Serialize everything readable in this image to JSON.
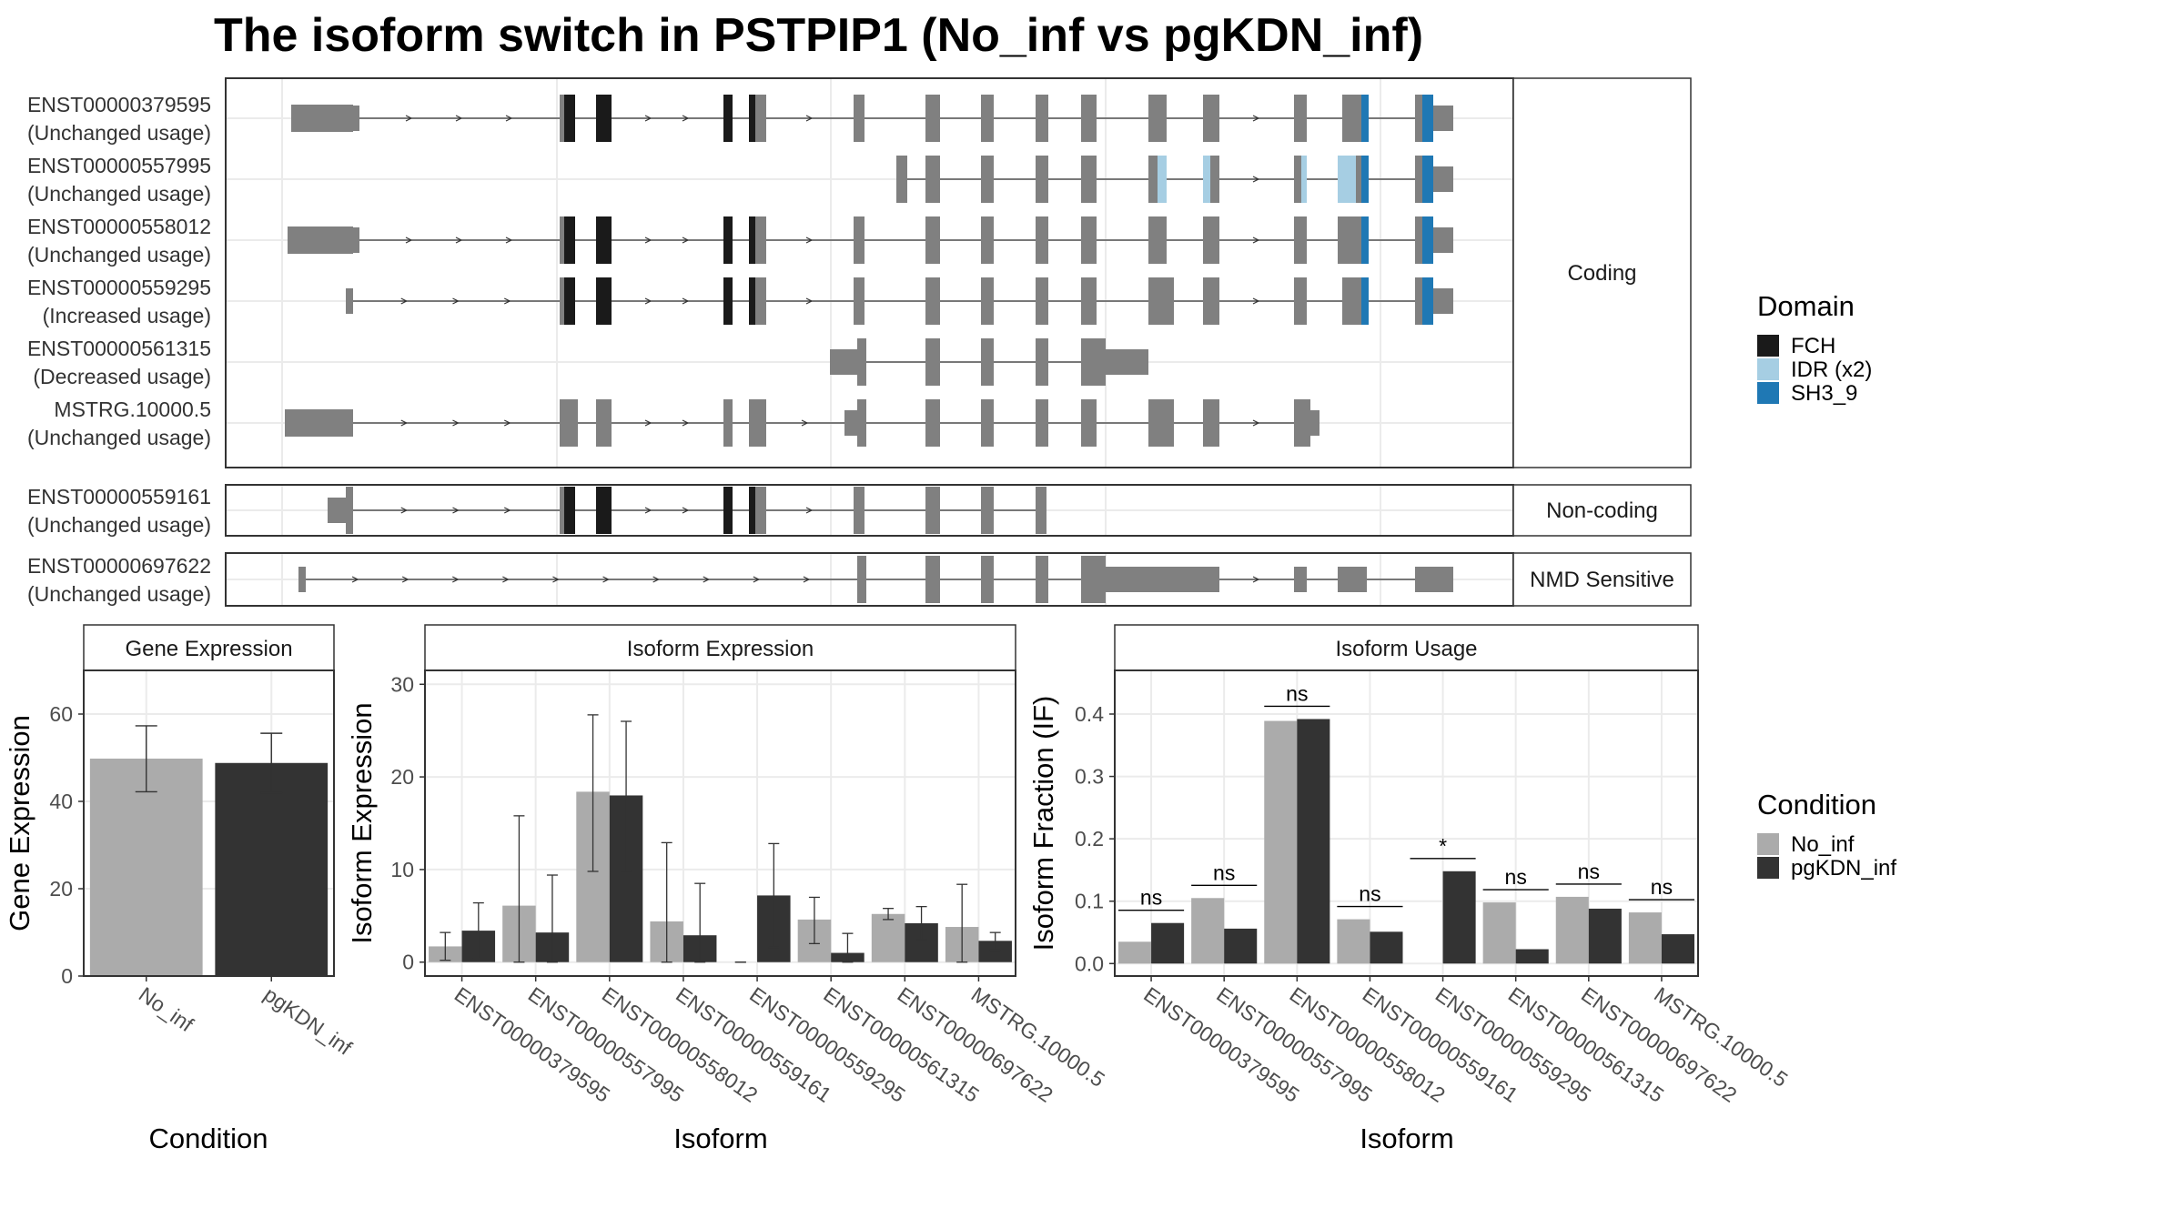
{
  "title": "The isoform switch in PSTPIP1 (No_inf vs pgKDN_inf)",
  "colors": {
    "exon": "#808080",
    "no_inf": "#ababab",
    "pgkdn_inf": "#333333",
    "FCH": "#1a1a1a",
    "IDR": "#a6cee3",
    "SH3_9": "#1f78b4",
    "grid": "#ebebeb",
    "frame": "#4d4d4d"
  },
  "transcript_groups": [
    {
      "label": "Coding",
      "transcripts": [
        {
          "id": "ENST00000379595",
          "usage": "(Unchanged usage)",
          "span": [
            320,
            1597
          ],
          "exons": [
            [
              320,
              388,
              "thick"
            ],
            [
              388,
              395,
              "utr"
            ],
            [
              615,
              620,
              "exon"
            ],
            [
              620,
              632,
              "FCH"
            ],
            [
              655,
              672,
              "FCH"
            ],
            [
              795,
              805,
              "FCH"
            ],
            [
              823,
              830,
              "FCH"
            ],
            [
              830,
              842,
              "exon"
            ],
            [
              938,
              950,
              "exon"
            ],
            [
              1017,
              1033,
              "exon"
            ],
            [
              1078,
              1092,
              "exon"
            ],
            [
              1138,
              1152,
              "exon"
            ],
            [
              1188,
              1205,
              "exon"
            ],
            [
              1262,
              1282,
              "exon"
            ],
            [
              1322,
              1340,
              "exon"
            ],
            [
              1422,
              1436,
              "exon"
            ],
            [
              1475,
              1496,
              "exon"
            ],
            [
              1496,
              1504,
              "SH3_9"
            ],
            [
              1555,
              1563,
              "exon"
            ],
            [
              1563,
              1575,
              "SH3_9"
            ],
            [
              1575,
              1597,
              "utr"
            ]
          ]
        },
        {
          "id": "ENST00000557995",
          "usage": "(Unchanged usage)",
          "span": [
            985,
            1597
          ],
          "exons": [
            [
              985,
              997,
              "exon"
            ],
            [
              1017,
              1033,
              "exon"
            ],
            [
              1078,
              1092,
              "exon"
            ],
            [
              1138,
              1152,
              "exon"
            ],
            [
              1188,
              1205,
              "exon"
            ],
            [
              1262,
              1272,
              "exon"
            ],
            [
              1272,
              1282,
              "IDR"
            ],
            [
              1322,
              1330,
              "IDR"
            ],
            [
              1330,
              1340,
              "exon"
            ],
            [
              1422,
              1430,
              "exon"
            ],
            [
              1430,
              1436,
              "IDR"
            ],
            [
              1470,
              1490,
              "IDR"
            ],
            [
              1490,
              1496,
              "exon"
            ],
            [
              1496,
              1504,
              "SH3_9"
            ],
            [
              1555,
              1563,
              "exon"
            ],
            [
              1563,
              1575,
              "SH3_9"
            ],
            [
              1575,
              1597,
              "utr"
            ]
          ]
        },
        {
          "id": "ENST00000558012",
          "usage": "(Unchanged usage)",
          "span": [
            316,
            1597
          ],
          "exons": [
            [
              316,
              388,
              "thick"
            ],
            [
              388,
              395,
              "utr"
            ],
            [
              615,
              620,
              "exon"
            ],
            [
              620,
              632,
              "FCH"
            ],
            [
              655,
              672,
              "FCH"
            ],
            [
              795,
              805,
              "FCH"
            ],
            [
              823,
              830,
              "FCH"
            ],
            [
              830,
              842,
              "exon"
            ],
            [
              938,
              950,
              "exon"
            ],
            [
              1017,
              1033,
              "exon"
            ],
            [
              1078,
              1092,
              "exon"
            ],
            [
              1138,
              1152,
              "exon"
            ],
            [
              1188,
              1205,
              "exon"
            ],
            [
              1262,
              1282,
              "exon"
            ],
            [
              1322,
              1340,
              "exon"
            ],
            [
              1422,
              1436,
              "exon"
            ],
            [
              1470,
              1496,
              "exon"
            ],
            [
              1496,
              1504,
              "SH3_9"
            ],
            [
              1555,
              1563,
              "exon"
            ],
            [
              1563,
              1575,
              "SH3_9"
            ],
            [
              1575,
              1597,
              "utr"
            ]
          ]
        },
        {
          "id": "ENST00000559295",
          "usage": "(Increased usage)",
          "span": [
            380,
            1597
          ],
          "exons": [
            [
              380,
              388,
              "utr"
            ],
            [
              615,
              620,
              "exon"
            ],
            [
              620,
              632,
              "FCH"
            ],
            [
              655,
              672,
              "FCH"
            ],
            [
              795,
              805,
              "FCH"
            ],
            [
              823,
              830,
              "FCH"
            ],
            [
              830,
              842,
              "exon"
            ],
            [
              938,
              950,
              "exon"
            ],
            [
              1017,
              1033,
              "exon"
            ],
            [
              1078,
              1092,
              "exon"
            ],
            [
              1138,
              1152,
              "exon"
            ],
            [
              1188,
              1205,
              "exon"
            ],
            [
              1262,
              1290,
              "exon"
            ],
            [
              1322,
              1340,
              "exon"
            ],
            [
              1422,
              1436,
              "exon"
            ],
            [
              1475,
              1496,
              "exon"
            ],
            [
              1496,
              1504,
              "SH3_9"
            ],
            [
              1555,
              1563,
              "exon"
            ],
            [
              1563,
              1575,
              "SH3_9"
            ],
            [
              1575,
              1597,
              "utr"
            ]
          ]
        },
        {
          "id": "ENST00000561315",
          "usage": "(Decreased usage)",
          "span": [
            912,
            1262
          ],
          "exons": [
            [
              912,
              942,
              "utr"
            ],
            [
              942,
              952,
              "exon"
            ],
            [
              1017,
              1033,
              "exon"
            ],
            [
              1078,
              1092,
              "exon"
            ],
            [
              1138,
              1152,
              "exon"
            ],
            [
              1188,
              1215,
              "exon"
            ],
            [
              1215,
              1262,
              "utr"
            ]
          ]
        },
        {
          "id": "MSTRG.10000.5",
          "usage": "(Unchanged usage)",
          "span": [
            313,
            1450
          ],
          "exons": [
            [
              313,
              388,
              "thick"
            ],
            [
              615,
              635,
              "exon"
            ],
            [
              655,
              672,
              "exon"
            ],
            [
              795,
              805,
              "exon"
            ],
            [
              823,
              842,
              "exon"
            ],
            [
              928,
              942,
              "utr"
            ],
            [
              942,
              952,
              "exon"
            ],
            [
              1017,
              1033,
              "exon"
            ],
            [
              1078,
              1092,
              "exon"
            ],
            [
              1138,
              1152,
              "exon"
            ],
            [
              1188,
              1205,
              "exon"
            ],
            [
              1262,
              1290,
              "exon"
            ],
            [
              1322,
              1340,
              "exon"
            ],
            [
              1422,
              1440,
              "exon"
            ],
            [
              1440,
              1450,
              "utr"
            ]
          ]
        }
      ]
    },
    {
      "label": "Non-coding",
      "transcripts": [
        {
          "id": "ENST00000559161",
          "usage": "(Unchanged usage)",
          "span": [
            360,
            1150
          ],
          "exons": [
            [
              360,
              380,
              "utr"
            ],
            [
              380,
              388,
              "exon"
            ],
            [
              615,
              620,
              "exon"
            ],
            [
              620,
              632,
              "FCH"
            ],
            [
              655,
              672,
              "FCH"
            ],
            [
              795,
              805,
              "FCH"
            ],
            [
              823,
              830,
              "FCH"
            ],
            [
              830,
              842,
              "exon"
            ],
            [
              938,
              950,
              "exon"
            ],
            [
              1017,
              1033,
              "exon"
            ],
            [
              1078,
              1092,
              "exon"
            ],
            [
              1138,
              1150,
              "exon"
            ]
          ]
        }
      ]
    },
    {
      "label": "NMD Sensitive",
      "transcripts": [
        {
          "id": "ENST00000697622",
          "usage": "(Unchanged usage)",
          "span": [
            328,
            1597
          ],
          "exons": [
            [
              328,
              336,
              "utr"
            ],
            [
              942,
              952,
              "exon"
            ],
            [
              1017,
              1033,
              "exon"
            ],
            [
              1078,
              1092,
              "exon"
            ],
            [
              1138,
              1152,
              "exon"
            ],
            [
              1188,
              1215,
              "exon"
            ],
            [
              1215,
              1340,
              "utr"
            ],
            [
              1422,
              1436,
              "utr"
            ],
            [
              1470,
              1502,
              "utr"
            ],
            [
              1555,
              1597,
              "utr"
            ]
          ]
        }
      ]
    }
  ],
  "domain_legend": {
    "title": "Domain",
    "items": [
      {
        "name": "FCH",
        "color": "#1a1a1a"
      },
      {
        "name": "IDR (x2)",
        "color": "#a6cee3"
      },
      {
        "name": "SH3_9",
        "color": "#1f78b4"
      }
    ]
  },
  "condition_legend": {
    "title": "Condition",
    "items": [
      {
        "name": "No_inf",
        "color": "#ababab"
      },
      {
        "name": "pgKDN_inf",
        "color": "#333333"
      }
    ]
  },
  "chart_data": [
    {
      "type": "bar",
      "title": "Gene Expression",
      "xlabel": "Condition",
      "ylabel": "Gene Expression",
      "categories": [
        "No_inf",
        "pgKDN_inf"
      ],
      "values": [
        49.8,
        48.8
      ],
      "error_low": [
        42.2,
        42.0
      ],
      "error_high": [
        57.3,
        55.6
      ],
      "ylim": [
        0,
        70
      ],
      "yticks": [
        0,
        20,
        40,
        60
      ]
    },
    {
      "type": "bar",
      "title": "Isoform Expression",
      "xlabel": "Isoform",
      "ylabel": "Isoform Expression",
      "categories": [
        "ENST00000379595",
        "ENST00000557995",
        "ENST00000558012",
        "ENST00000559161",
        "ENST00000559295",
        "ENST00000561315",
        "ENST00000697622",
        "MSTRG.10000.5"
      ],
      "series": [
        {
          "name": "No_inf",
          "values": [
            1.7,
            6.1,
            18.4,
            4.4,
            0.0,
            4.6,
            5.2,
            3.8
          ],
          "error_low": [
            0.2,
            0.0,
            9.8,
            0.0,
            0.0,
            2.0,
            4.6,
            0.0
          ],
          "error_high": [
            3.2,
            15.8,
            26.7,
            12.9,
            0.0,
            7.0,
            5.8,
            8.4
          ]
        },
        {
          "name": "pgKDN_inf",
          "values": [
            3.4,
            3.2,
            18.0,
            2.9,
            7.2,
            1.0,
            4.2,
            2.3
          ],
          "error_low": [
            0.4,
            0.0,
            9.8,
            0.0,
            1.6,
            0.0,
            2.4,
            1.3
          ],
          "error_high": [
            6.4,
            9.4,
            26.0,
            8.5,
            12.8,
            3.1,
            6.0,
            3.2
          ]
        }
      ],
      "ylim": [
        -1.5,
        31.5
      ],
      "yticks": [
        0,
        10,
        20,
        30
      ]
    },
    {
      "type": "bar",
      "title": "Isoform Usage",
      "xlabel": "Isoform",
      "ylabel": "Isoform Fraction (IF)",
      "categories": [
        "ENST00000379595",
        "ENST00000557995",
        "ENST00000558012",
        "ENST00000559161",
        "ENST00000559295",
        "ENST00000561315",
        "ENST00000697622",
        "MSTRG.10000.5"
      ],
      "series": [
        {
          "name": "No_inf",
          "values": [
            0.035,
            0.105,
            0.389,
            0.071,
            0.0,
            0.098,
            0.107,
            0.082
          ]
        },
        {
          "name": "pgKDN_inf",
          "values": [
            0.065,
            0.056,
            0.392,
            0.051,
            0.148,
            0.023,
            0.088,
            0.047
          ]
        }
      ],
      "significance": [
        "ns",
        "ns",
        "ns",
        "ns",
        "*",
        "ns",
        "ns",
        "ns"
      ],
      "ylim": [
        -0.02,
        0.47
      ],
      "yticks": [
        0.0,
        0.1,
        0.2,
        0.3,
        0.4
      ]
    }
  ]
}
